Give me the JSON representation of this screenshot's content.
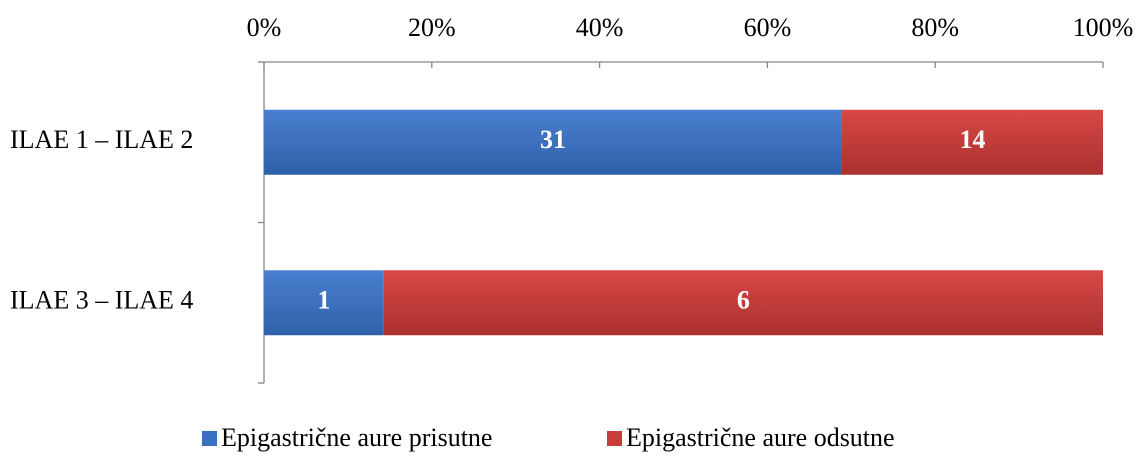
{
  "chart_data": {
    "type": "bar",
    "orientation": "horizontal",
    "stacking": "percent",
    "categories": [
      "ILAE 1 – ILAE 2",
      "ILAE 3 – ILAE 4"
    ],
    "series": [
      {
        "name": "Epigastrične aure prisutne",
        "color": "#3a70c0",
        "values": [
          31,
          1
        ]
      },
      {
        "name": "Epigastrične aure odsutne",
        "color": "#c83c3a",
        "values": [
          14,
          6
        ]
      }
    ],
    "xlim": [
      0,
      100
    ],
    "xticks": [
      {
        "value": 0,
        "label": "0%"
      },
      {
        "value": 20,
        "label": "20%"
      },
      {
        "value": 40,
        "label": "40%"
      },
      {
        "value": 60,
        "label": "60%"
      },
      {
        "value": 80,
        "label": "80%"
      },
      {
        "value": 100,
        "label": "100%"
      }
    ],
    "legend": "bottom"
  }
}
